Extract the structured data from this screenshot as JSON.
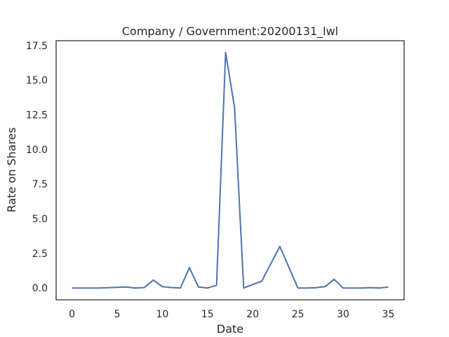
{
  "chart_data": {
    "type": "line",
    "title": "Company / Government:20200131_lwl",
    "xlabel": "Date",
    "ylabel": "Rate on Shares",
    "xlim": [
      -1.75,
      36.75
    ],
    "ylim": [
      -0.85,
      17.85
    ],
    "xticks": [
      0,
      5,
      10,
      15,
      20,
      25,
      30,
      35
    ],
    "yticks": [
      0.0,
      2.5,
      5.0,
      7.5,
      10.0,
      12.5,
      15.0,
      17.5
    ],
    "ytick_labels": [
      "0.0",
      "2.5",
      "5.0",
      "7.5",
      "10.0",
      "12.5",
      "15.0",
      "17.5"
    ],
    "xtick_labels": [
      "0",
      "5",
      "10",
      "15",
      "20",
      "25",
      "30",
      "35"
    ],
    "grid": false,
    "series": [
      {
        "color": "#4c72b0",
        "x": [
          0,
          3,
          6,
          7,
          8,
          9,
          10,
          11,
          12,
          13,
          14,
          15,
          16,
          17,
          18,
          19,
          21,
          23,
          25,
          26,
          27,
          28,
          29,
          30,
          31,
          32,
          33,
          34,
          35
        ],
        "y": [
          0.0,
          0.0,
          0.07,
          0.0,
          0.03,
          0.58,
          0.1,
          0.03,
          0.0,
          1.47,
          0.07,
          0.0,
          0.2,
          17.0,
          13.0,
          0.0,
          0.5,
          3.0,
          0.0,
          0.0,
          0.02,
          0.1,
          0.63,
          0.0,
          0.0,
          0.0,
          0.02,
          0.0,
          0.07
        ]
      }
    ]
  }
}
